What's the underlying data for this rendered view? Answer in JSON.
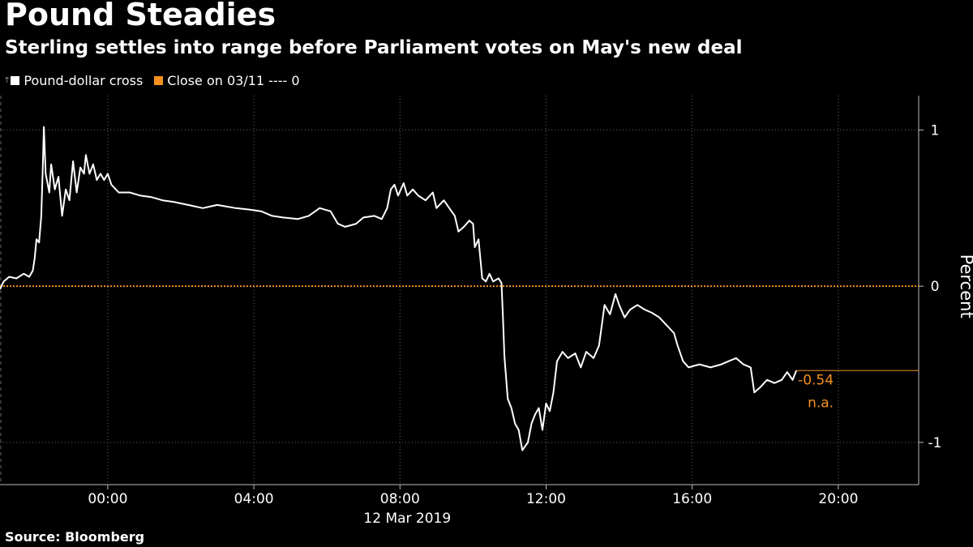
{
  "header": {
    "title": "Pound Steadies",
    "subtitle": "Sterling settles into range before Parliament votes on May's new deal"
  },
  "legend": {
    "pin_glyph": "⍑",
    "series_label": "Pound-dollar cross",
    "series_color": "#ffffff",
    "ref_label": "Close on 03/11 ---- 0",
    "ref_color": "#f5911e"
  },
  "footer": {
    "source": "Source: Bloomberg"
  },
  "chart_data": {
    "type": "line",
    "title": "Pound Steadies",
    "subtitle": "Sterling settles into range before Parliament votes on May's new deal",
    "xlabel": "12 Mar 2019",
    "ylabel": "Percent",
    "x_unit": "hours from 00:00 on 12 Mar 2019 (negative = 11 Mar evening)",
    "xlim": [
      -2.95,
      22.2
    ],
    "ylim": [
      -1.27,
      1.22
    ],
    "x_ticks": [
      {
        "value": 0,
        "label": "00:00"
      },
      {
        "value": 4,
        "label": "04:00"
      },
      {
        "value": 8,
        "label": "08:00"
      },
      {
        "value": 12,
        "label": "12:00"
      },
      {
        "value": 16,
        "label": "16:00"
      },
      {
        "value": 20,
        "label": "20:00"
      }
    ],
    "y_ticks": [
      {
        "value": 1,
        "label": "1"
      },
      {
        "value": 0,
        "label": "0"
      },
      {
        "value": -1,
        "label": "-1"
      }
    ],
    "grid": true,
    "reference_line": {
      "name": "Close on 03/11",
      "value": 0,
      "color": "#f5911e",
      "style": "dotted"
    },
    "last_value_label": "-0.54",
    "last_value_note": "n.a.",
    "legend_position": "top-left",
    "series": [
      {
        "name": "Pound-dollar cross",
        "color": "#ffffff",
        "points": [
          [
            -2.95,
            -0.02
          ],
          [
            -2.85,
            0.03
          ],
          [
            -2.7,
            0.06
          ],
          [
            -2.5,
            0.05
          ],
          [
            -2.3,
            0.08
          ],
          [
            -2.15,
            0.06
          ],
          [
            -2.05,
            0.1
          ],
          [
            -2.0,
            0.18
          ],
          [
            -1.95,
            0.3
          ],
          [
            -1.88,
            0.28
          ],
          [
            -1.82,
            0.45
          ],
          [
            -1.78,
            0.75
          ],
          [
            -1.75,
            1.02
          ],
          [
            -1.7,
            0.72
          ],
          [
            -1.6,
            0.6
          ],
          [
            -1.55,
            0.78
          ],
          [
            -1.45,
            0.62
          ],
          [
            -1.35,
            0.7
          ],
          [
            -1.25,
            0.45
          ],
          [
            -1.15,
            0.62
          ],
          [
            -1.05,
            0.55
          ],
          [
            -0.95,
            0.8
          ],
          [
            -0.85,
            0.6
          ],
          [
            -0.75,
            0.76
          ],
          [
            -0.65,
            0.72
          ],
          [
            -0.6,
            0.84
          ],
          [
            -0.5,
            0.72
          ],
          [
            -0.4,
            0.78
          ],
          [
            -0.3,
            0.68
          ],
          [
            -0.2,
            0.72
          ],
          [
            -0.1,
            0.68
          ],
          [
            0.0,
            0.72
          ],
          [
            0.1,
            0.65
          ],
          [
            0.3,
            0.6
          ],
          [
            0.6,
            0.6
          ],
          [
            0.9,
            0.58
          ],
          [
            1.2,
            0.57
          ],
          [
            1.5,
            0.55
          ],
          [
            1.8,
            0.54
          ],
          [
            2.2,
            0.52
          ],
          [
            2.6,
            0.5
          ],
          [
            3.0,
            0.52
          ],
          [
            3.5,
            0.5
          ],
          [
            3.9,
            0.49
          ],
          [
            4.2,
            0.48
          ],
          [
            4.5,
            0.45
          ],
          [
            4.8,
            0.44
          ],
          [
            5.2,
            0.43
          ],
          [
            5.5,
            0.45
          ],
          [
            5.8,
            0.5
          ],
          [
            6.1,
            0.48
          ],
          [
            6.3,
            0.4
          ],
          [
            6.5,
            0.38
          ],
          [
            6.8,
            0.4
          ],
          [
            7.0,
            0.44
          ],
          [
            7.3,
            0.45
          ],
          [
            7.5,
            0.43
          ],
          [
            7.65,
            0.5
          ],
          [
            7.75,
            0.62
          ],
          [
            7.85,
            0.65
          ],
          [
            7.95,
            0.58
          ],
          [
            8.1,
            0.66
          ],
          [
            8.2,
            0.58
          ],
          [
            8.35,
            0.62
          ],
          [
            8.5,
            0.58
          ],
          [
            8.7,
            0.55
          ],
          [
            8.9,
            0.6
          ],
          [
            9.0,
            0.5
          ],
          [
            9.2,
            0.55
          ],
          [
            9.35,
            0.5
          ],
          [
            9.5,
            0.45
          ],
          [
            9.6,
            0.35
          ],
          [
            9.75,
            0.38
          ],
          [
            9.9,
            0.42
          ],
          [
            10.0,
            0.4
          ],
          [
            10.05,
            0.25
          ],
          [
            10.15,
            0.3
          ],
          [
            10.25,
            0.05
          ],
          [
            10.35,
            0.03
          ],
          [
            10.45,
            0.08
          ],
          [
            10.55,
            0.03
          ],
          [
            10.7,
            0.05
          ],
          [
            10.78,
            0.02
          ],
          [
            10.82,
            -0.2
          ],
          [
            10.86,
            -0.45
          ],
          [
            10.95,
            -0.72
          ],
          [
            11.05,
            -0.78
          ],
          [
            11.15,
            -0.88
          ],
          [
            11.25,
            -0.92
          ],
          [
            11.35,
            -1.05
          ],
          [
            11.5,
            -1.0
          ],
          [
            11.6,
            -0.88
          ],
          [
            11.7,
            -0.82
          ],
          [
            11.8,
            -0.78
          ],
          [
            11.9,
            -0.92
          ],
          [
            12.0,
            -0.75
          ],
          [
            12.1,
            -0.8
          ],
          [
            12.2,
            -0.68
          ],
          [
            12.3,
            -0.48
          ],
          [
            12.45,
            -0.42
          ],
          [
            12.6,
            -0.46
          ],
          [
            12.8,
            -0.43
          ],
          [
            12.95,
            -0.52
          ],
          [
            13.1,
            -0.42
          ],
          [
            13.3,
            -0.46
          ],
          [
            13.45,
            -0.38
          ],
          [
            13.6,
            -0.12
          ],
          [
            13.75,
            -0.18
          ],
          [
            13.9,
            -0.05
          ],
          [
            14.0,
            -0.12
          ],
          [
            14.15,
            -0.2
          ],
          [
            14.3,
            -0.15
          ],
          [
            14.5,
            -0.12
          ],
          [
            14.7,
            -0.15
          ],
          [
            14.9,
            -0.17
          ],
          [
            15.1,
            -0.2
          ],
          [
            15.3,
            -0.25
          ],
          [
            15.5,
            -0.3
          ],
          [
            15.6,
            -0.38
          ],
          [
            15.75,
            -0.48
          ],
          [
            15.9,
            -0.52
          ],
          [
            16.2,
            -0.5
          ],
          [
            16.5,
            -0.52
          ],
          [
            16.8,
            -0.5
          ],
          [
            17.0,
            -0.48
          ],
          [
            17.2,
            -0.46
          ],
          [
            17.4,
            -0.5
          ],
          [
            17.6,
            -0.52
          ],
          [
            17.7,
            -0.68
          ],
          [
            17.85,
            -0.65
          ],
          [
            18.05,
            -0.6
          ],
          [
            18.25,
            -0.62
          ],
          [
            18.45,
            -0.6
          ],
          [
            18.6,
            -0.55
          ],
          [
            18.75,
            -0.6
          ],
          [
            18.85,
            -0.54
          ]
        ]
      }
    ]
  }
}
